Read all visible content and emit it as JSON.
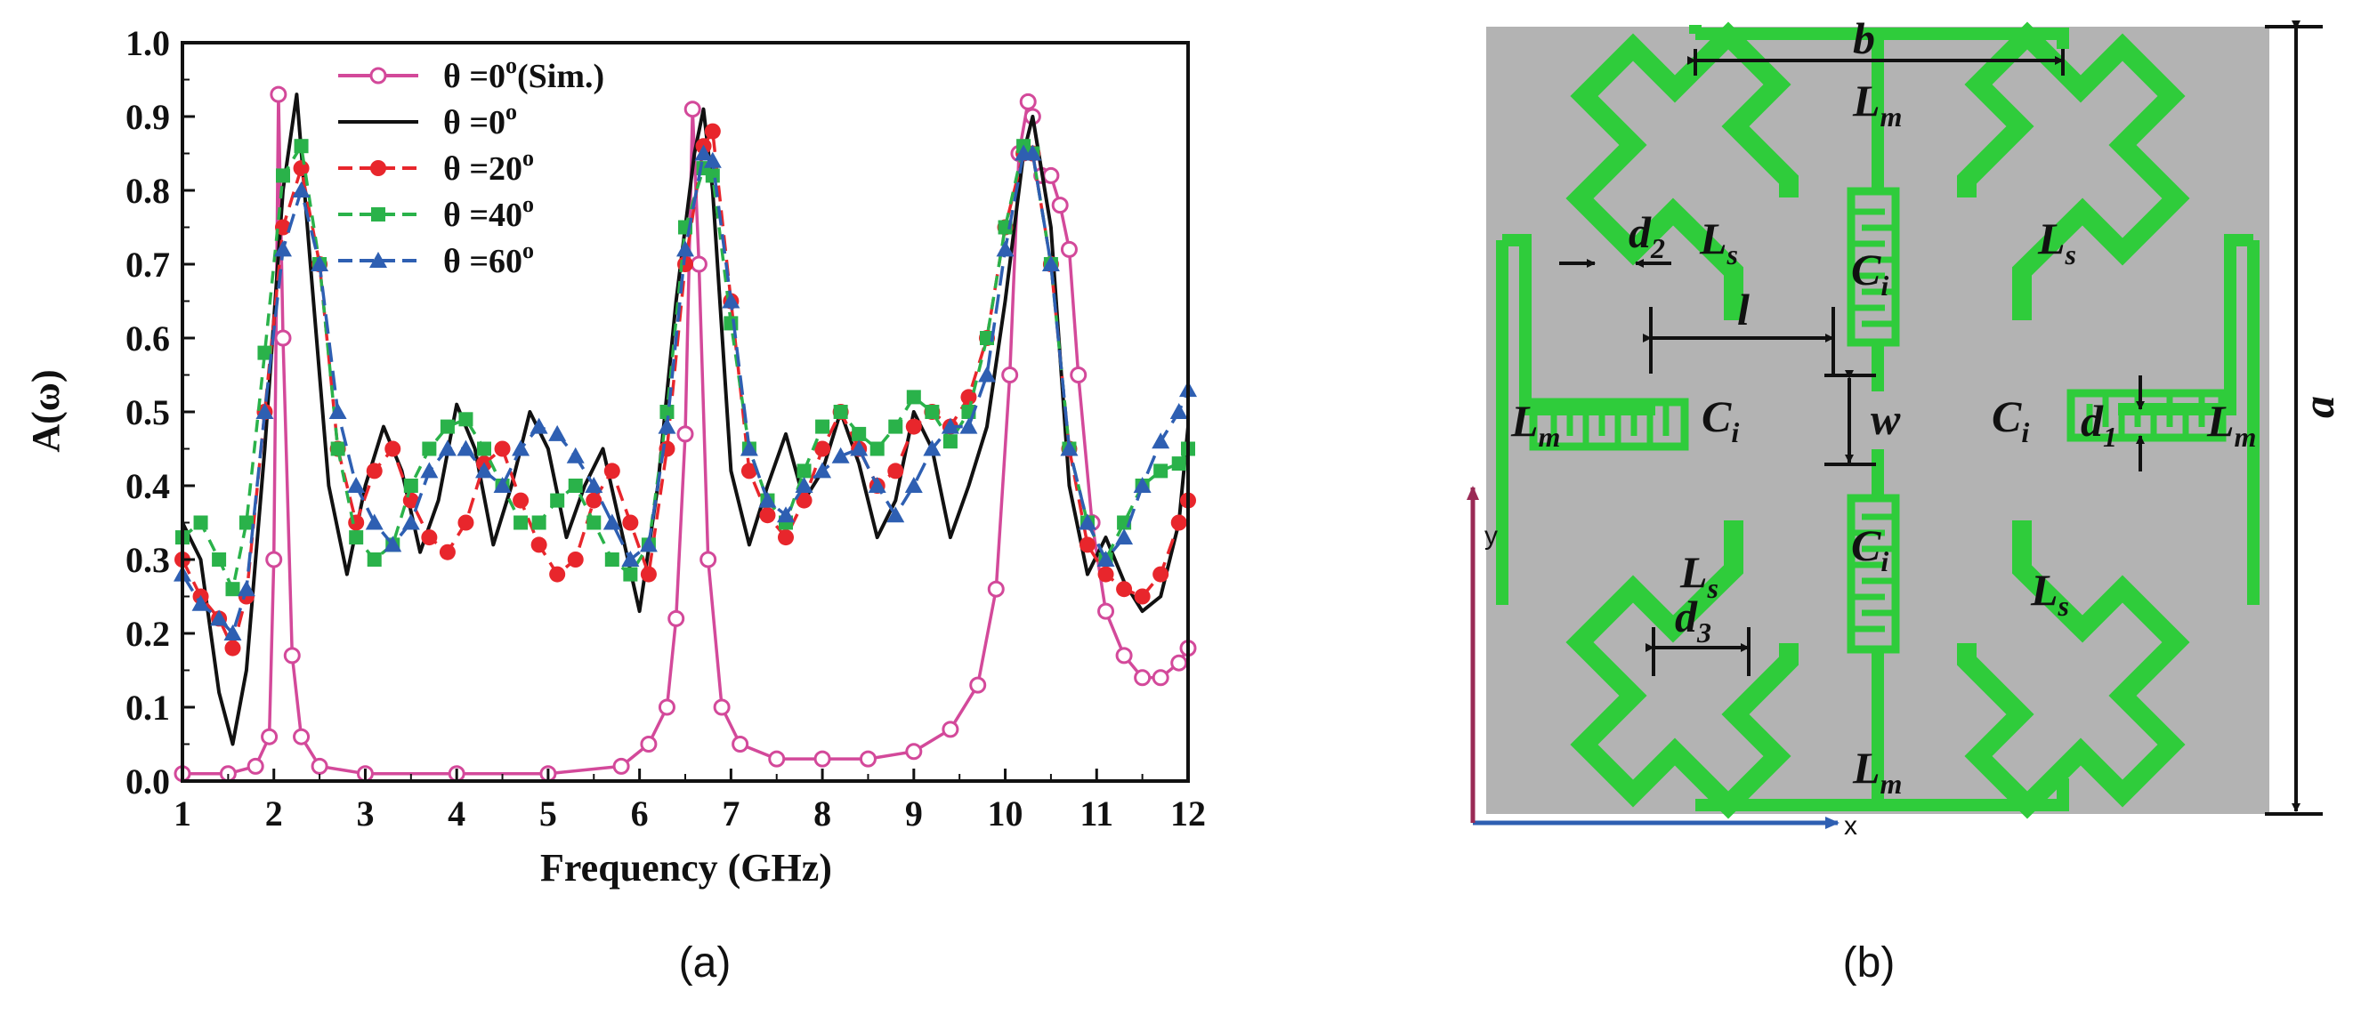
{
  "figure": {
    "panel_a_label": "(a)",
    "panel_b_label": "(b)"
  },
  "chart_data": {
    "type": "line",
    "xlabel": "Frequency (GHz)",
    "ylabel": "A(ω)",
    "xlim": [
      1,
      12
    ],
    "ylim": [
      0,
      1.0
    ],
    "xticks": [
      "1",
      "2",
      "3",
      "4",
      "5",
      "6",
      "7",
      "8",
      "9",
      "10",
      "11",
      "12"
    ],
    "yticks": [
      "0.0",
      "0.1",
      "0.2",
      "0.3",
      "0.4",
      "0.5",
      "0.6",
      "0.7",
      "0.8",
      "0.9",
      "1.0"
    ],
    "legend_position": "top-left",
    "grid": false,
    "series": [
      {
        "name": "θ =0°(Sim.)",
        "label_main": "θ =0",
        "label_sup": "o",
        "label_tail": "(Sim.)",
        "color": "#d3499a",
        "marker": "open-circle",
        "x": [
          1.0,
          1.5,
          1.8,
          1.95,
          2.0,
          2.05,
          2.1,
          2.2,
          2.3,
          2.5,
          3.0,
          4.0,
          5.0,
          5.8,
          6.1,
          6.3,
          6.4,
          6.5,
          6.58,
          6.65,
          6.75,
          6.9,
          7.1,
          7.5,
          8.0,
          8.5,
          9.0,
          9.4,
          9.7,
          9.9,
          10.05,
          10.15,
          10.25,
          10.3,
          10.4,
          10.5,
          10.6,
          10.7,
          10.8,
          10.95,
          11.1,
          11.3,
          11.5,
          11.7,
          11.9,
          12.0
        ],
        "y": [
          0.01,
          0.01,
          0.02,
          0.06,
          0.3,
          0.93,
          0.6,
          0.17,
          0.06,
          0.02,
          0.01,
          0.01,
          0.01,
          0.02,
          0.05,
          0.1,
          0.22,
          0.47,
          0.91,
          0.7,
          0.3,
          0.1,
          0.05,
          0.03,
          0.03,
          0.03,
          0.04,
          0.07,
          0.13,
          0.26,
          0.55,
          0.85,
          0.92,
          0.9,
          0.82,
          0.82,
          0.78,
          0.72,
          0.55,
          0.35,
          0.23,
          0.17,
          0.14,
          0.14,
          0.16,
          0.18
        ]
      },
      {
        "name": "θ =0°",
        "label_main": "θ =0",
        "label_sup": "o",
        "label_tail": "",
        "color": "#111111",
        "marker": "none",
        "x": [
          1.0,
          1.2,
          1.4,
          1.55,
          1.7,
          1.9,
          2.1,
          2.25,
          2.4,
          2.6,
          2.8,
          3.0,
          3.2,
          3.4,
          3.6,
          3.8,
          4.0,
          4.2,
          4.4,
          4.6,
          4.8,
          5.0,
          5.2,
          5.4,
          5.6,
          5.8,
          6.0,
          6.2,
          6.4,
          6.6,
          6.7,
          6.8,
          7.0,
          7.2,
          7.4,
          7.6,
          7.8,
          8.0,
          8.2,
          8.4,
          8.6,
          8.8,
          9.0,
          9.2,
          9.4,
          9.6,
          9.8,
          10.0,
          10.2,
          10.3,
          10.5,
          10.7,
          10.9,
          11.1,
          11.3,
          11.5,
          11.7,
          11.9,
          12.0
        ],
        "y": [
          0.35,
          0.3,
          0.12,
          0.05,
          0.15,
          0.45,
          0.8,
          0.93,
          0.7,
          0.4,
          0.28,
          0.4,
          0.48,
          0.42,
          0.31,
          0.38,
          0.51,
          0.45,
          0.32,
          0.4,
          0.5,
          0.45,
          0.33,
          0.4,
          0.45,
          0.34,
          0.23,
          0.4,
          0.65,
          0.85,
          0.91,
          0.8,
          0.42,
          0.32,
          0.4,
          0.47,
          0.38,
          0.42,
          0.5,
          0.43,
          0.33,
          0.38,
          0.5,
          0.45,
          0.33,
          0.4,
          0.48,
          0.65,
          0.85,
          0.9,
          0.75,
          0.4,
          0.28,
          0.33,
          0.27,
          0.23,
          0.25,
          0.35,
          0.48
        ]
      },
      {
        "name": "θ =20°",
        "label_main": "θ =20",
        "label_sup": "o",
        "label_tail": "",
        "color": "#e8262c",
        "marker": "filled-circle",
        "x": [
          1.0,
          1.2,
          1.4,
          1.55,
          1.7,
          1.9,
          2.1,
          2.3,
          2.5,
          2.7,
          2.9,
          3.1,
          3.3,
          3.5,
          3.7,
          3.9,
          4.1,
          4.3,
          4.5,
          4.7,
          4.9,
          5.1,
          5.3,
          5.5,
          5.7,
          5.9,
          6.1,
          6.3,
          6.5,
          6.7,
          6.8,
          7.0,
          7.2,
          7.4,
          7.6,
          7.8,
          8.0,
          8.2,
          8.4,
          8.6,
          8.8,
          9.0,
          9.2,
          9.4,
          9.6,
          9.8,
          10.0,
          10.2,
          10.3,
          10.5,
          10.7,
          10.9,
          11.1,
          11.3,
          11.5,
          11.7,
          11.9,
          12.0
        ],
        "y": [
          0.3,
          0.25,
          0.22,
          0.18,
          0.25,
          0.5,
          0.75,
          0.83,
          0.7,
          0.45,
          0.35,
          0.42,
          0.45,
          0.38,
          0.33,
          0.31,
          0.35,
          0.43,
          0.45,
          0.38,
          0.32,
          0.28,
          0.3,
          0.38,
          0.42,
          0.35,
          0.28,
          0.45,
          0.7,
          0.86,
          0.88,
          0.65,
          0.42,
          0.36,
          0.33,
          0.38,
          0.45,
          0.5,
          0.45,
          0.4,
          0.42,
          0.48,
          0.5,
          0.48,
          0.52,
          0.6,
          0.75,
          0.85,
          0.85,
          0.7,
          0.45,
          0.32,
          0.28,
          0.26,
          0.25,
          0.28,
          0.35,
          0.38
        ]
      },
      {
        "name": "θ =40°",
        "label_main": "θ =40",
        "label_sup": "o",
        "label_tail": "",
        "color": "#2ab24a",
        "marker": "filled-square",
        "x": [
          1.0,
          1.2,
          1.4,
          1.55,
          1.7,
          1.9,
          2.1,
          2.3,
          2.5,
          2.7,
          2.9,
          3.1,
          3.3,
          3.5,
          3.7,
          3.9,
          4.1,
          4.3,
          4.5,
          4.7,
          4.9,
          5.1,
          5.3,
          5.5,
          5.7,
          5.9,
          6.1,
          6.3,
          6.5,
          6.7,
          6.8,
          7.0,
          7.2,
          7.4,
          7.6,
          7.8,
          8.0,
          8.2,
          8.4,
          8.6,
          8.8,
          9.0,
          9.2,
          9.4,
          9.6,
          9.8,
          10.0,
          10.2,
          10.3,
          10.5,
          10.7,
          10.9,
          11.1,
          11.3,
          11.5,
          11.7,
          11.9,
          12.0
        ],
        "y": [
          0.33,
          0.35,
          0.3,
          0.26,
          0.35,
          0.58,
          0.82,
          0.86,
          0.7,
          0.45,
          0.33,
          0.3,
          0.32,
          0.4,
          0.45,
          0.48,
          0.49,
          0.45,
          0.4,
          0.35,
          0.35,
          0.38,
          0.4,
          0.35,
          0.3,
          0.28,
          0.32,
          0.5,
          0.75,
          0.83,
          0.82,
          0.62,
          0.45,
          0.38,
          0.35,
          0.42,
          0.48,
          0.5,
          0.47,
          0.45,
          0.48,
          0.52,
          0.5,
          0.46,
          0.5,
          0.6,
          0.75,
          0.86,
          0.85,
          0.7,
          0.45,
          0.35,
          0.3,
          0.35,
          0.4,
          0.42,
          0.43,
          0.45
        ]
      },
      {
        "name": "θ =60°",
        "label_main": "θ =60",
        "label_sup": "o",
        "label_tail": "",
        "color": "#2e5fb2",
        "marker": "filled-triangle",
        "x": [
          1.0,
          1.2,
          1.4,
          1.55,
          1.7,
          1.9,
          2.1,
          2.3,
          2.5,
          2.7,
          2.9,
          3.1,
          3.3,
          3.5,
          3.7,
          3.9,
          4.1,
          4.3,
          4.5,
          4.7,
          4.9,
          5.1,
          5.3,
          5.5,
          5.7,
          5.9,
          6.1,
          6.3,
          6.5,
          6.7,
          6.8,
          7.0,
          7.2,
          7.4,
          7.6,
          7.8,
          8.0,
          8.2,
          8.4,
          8.6,
          8.8,
          9.0,
          9.2,
          9.4,
          9.6,
          9.8,
          10.0,
          10.2,
          10.3,
          10.5,
          10.7,
          10.9,
          11.1,
          11.3,
          11.5,
          11.7,
          11.9,
          12.0
        ],
        "y": [
          0.28,
          0.24,
          0.22,
          0.2,
          0.26,
          0.5,
          0.72,
          0.8,
          0.7,
          0.5,
          0.4,
          0.35,
          0.32,
          0.35,
          0.42,
          0.45,
          0.45,
          0.42,
          0.4,
          0.45,
          0.48,
          0.47,
          0.44,
          0.4,
          0.35,
          0.3,
          0.32,
          0.48,
          0.72,
          0.85,
          0.84,
          0.65,
          0.45,
          0.38,
          0.36,
          0.4,
          0.42,
          0.44,
          0.45,
          0.4,
          0.36,
          0.4,
          0.45,
          0.48,
          0.48,
          0.55,
          0.72,
          0.85,
          0.85,
          0.7,
          0.45,
          0.35,
          0.3,
          0.33,
          0.4,
          0.46,
          0.5,
          0.53
        ]
      }
    ]
  },
  "diagram": {
    "labels": {
      "a": "a",
      "b": "b",
      "lm": "L",
      "lm_sub": "m",
      "ls": "L",
      "ls_sub": "s",
      "ci": "C",
      "ci_sub": "i",
      "d1": "d",
      "d1_sub": "1",
      "d2": "d",
      "d2_sub": "2",
      "d3": "d",
      "d3_sub": "3",
      "l": "l",
      "w": "w",
      "x_axis": "x",
      "y_axis": "y"
    },
    "colors": {
      "substrate": "#b3b3b3",
      "metal": "#2fcc3b",
      "dimension": "#111111",
      "x_axis": "#2e5fb2",
      "y_axis": "#9a2a55"
    }
  }
}
